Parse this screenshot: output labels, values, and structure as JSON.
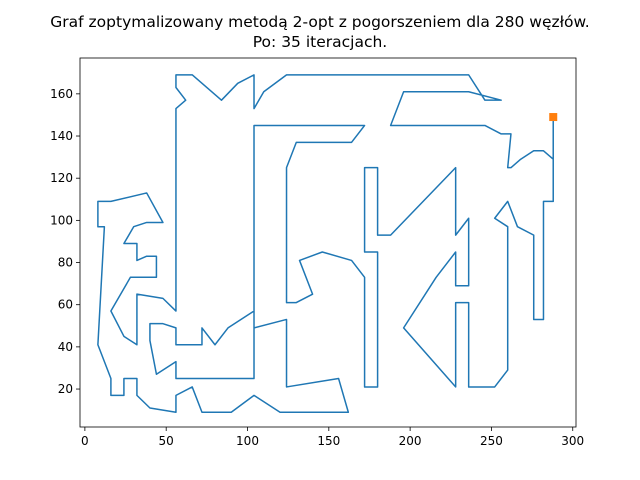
{
  "chart_data": {
    "type": "line",
    "title_line1": "Graf zoptymalizowany metodą 2-opt z pogorszeniem dla 280 węzłów.",
    "title_line2": "Po: 35 iteracjach.",
    "xlabel": "",
    "ylabel": "",
    "xlim": [
      -3,
      302
    ],
    "ylim": [
      2,
      177
    ],
    "xticks": [
      0,
      50,
      100,
      150,
      200,
      250,
      300
    ],
    "yticks": [
      20,
      40,
      60,
      80,
      100,
      120,
      140,
      160
    ],
    "grid": false,
    "colors": {
      "path": "#1f77b4",
      "start": "#ff7f0e"
    },
    "start_point": [
      288,
      149
    ],
    "path": [
      [
        288,
        149
      ],
      [
        288,
        129
      ],
      [
        282,
        133
      ],
      [
        276,
        133
      ],
      [
        268,
        129
      ],
      [
        262,
        125
      ],
      [
        260,
        125
      ],
      [
        262,
        141
      ],
      [
        256,
        141
      ],
      [
        246,
        145
      ],
      [
        188,
        145
      ],
      [
        196,
        161
      ],
      [
        236,
        161
      ],
      [
        256,
        157
      ],
      [
        246,
        157
      ],
      [
        236,
        169
      ],
      [
        124,
        169
      ],
      [
        110,
        161
      ],
      [
        104,
        153
      ],
      [
        104,
        169
      ],
      [
        94,
        165
      ],
      [
        84,
        157
      ],
      [
        66,
        169
      ],
      [
        56,
        169
      ],
      [
        56,
        163
      ],
      [
        62,
        157
      ],
      [
        56,
        153
      ],
      [
        56,
        57
      ],
      [
        48,
        63
      ],
      [
        32,
        65
      ],
      [
        32,
        41
      ],
      [
        24,
        45
      ],
      [
        16,
        57
      ],
      [
        28,
        73
      ],
      [
        44,
        73
      ],
      [
        44,
        83
      ],
      [
        38,
        83
      ],
      [
        32,
        81
      ],
      [
        32,
        89
      ],
      [
        24,
        89
      ],
      [
        30,
        97
      ],
      [
        38,
        99
      ],
      [
        44,
        99
      ],
      [
        48,
        99
      ],
      [
        38,
        113
      ],
      [
        16,
        109
      ],
      [
        8,
        109
      ],
      [
        8,
        97
      ],
      [
        12,
        97
      ],
      [
        8,
        41
      ],
      [
        16,
        25
      ],
      [
        16,
        17
      ],
      [
        24,
        17
      ],
      [
        24,
        25
      ],
      [
        32,
        25
      ],
      [
        32,
        17
      ],
      [
        40,
        11
      ],
      [
        56,
        9
      ],
      [
        56,
        17
      ],
      [
        66,
        21
      ],
      [
        72,
        9
      ],
      [
        90,
        9
      ],
      [
        104,
        17
      ],
      [
        120,
        9
      ],
      [
        162,
        9
      ],
      [
        156,
        25
      ],
      [
        124,
        21
      ],
      [
        124,
        21
      ],
      [
        124,
        53
      ],
      [
        104,
        49
      ],
      [
        104,
        57
      ],
      [
        88,
        49
      ],
      [
        80,
        41
      ],
      [
        72,
        49
      ],
      [
        72,
        41
      ],
      [
        56,
        41
      ],
      [
        56,
        49
      ],
      [
        48,
        51
      ],
      [
        40,
        51
      ],
      [
        40,
        43
      ],
      [
        44,
        27
      ],
      [
        56,
        33
      ],
      [
        56,
        25
      ],
      [
        104,
        25
      ],
      [
        104,
        145
      ],
      [
        172,
        145
      ],
      [
        164,
        137
      ],
      [
        130,
        137
      ],
      [
        124,
        125
      ],
      [
        124,
        61
      ],
      [
        130,
        61
      ],
      [
        140,
        65
      ],
      [
        132,
        81
      ],
      [
        146,
        85
      ],
      [
        164,
        81
      ],
      [
        172,
        73
      ],
      [
        172,
        21
      ],
      [
        180,
        21
      ],
      [
        180,
        85
      ],
      [
        172,
        85
      ],
      [
        172,
        125
      ],
      [
        180,
        125
      ],
      [
        180,
        93
      ],
      [
        188,
        93
      ],
      [
        228,
        125
      ],
      [
        228,
        93
      ],
      [
        236,
        101
      ],
      [
        236,
        69
      ],
      [
        228,
        69
      ],
      [
        228,
        85
      ],
      [
        216,
        73
      ],
      [
        196,
        49
      ],
      [
        228,
        21
      ],
      [
        228,
        61
      ],
      [
        236,
        61
      ],
      [
        236,
        21
      ],
      [
        252,
        21
      ],
      [
        260,
        29
      ],
      [
        260,
        97
      ],
      [
        252,
        101
      ],
      [
        260,
        109
      ],
      [
        266,
        97
      ],
      [
        276,
        93
      ],
      [
        276,
        53
      ],
      [
        282,
        53
      ],
      [
        282,
        109
      ],
      [
        288,
        109
      ],
      [
        288,
        149
      ]
    ]
  }
}
